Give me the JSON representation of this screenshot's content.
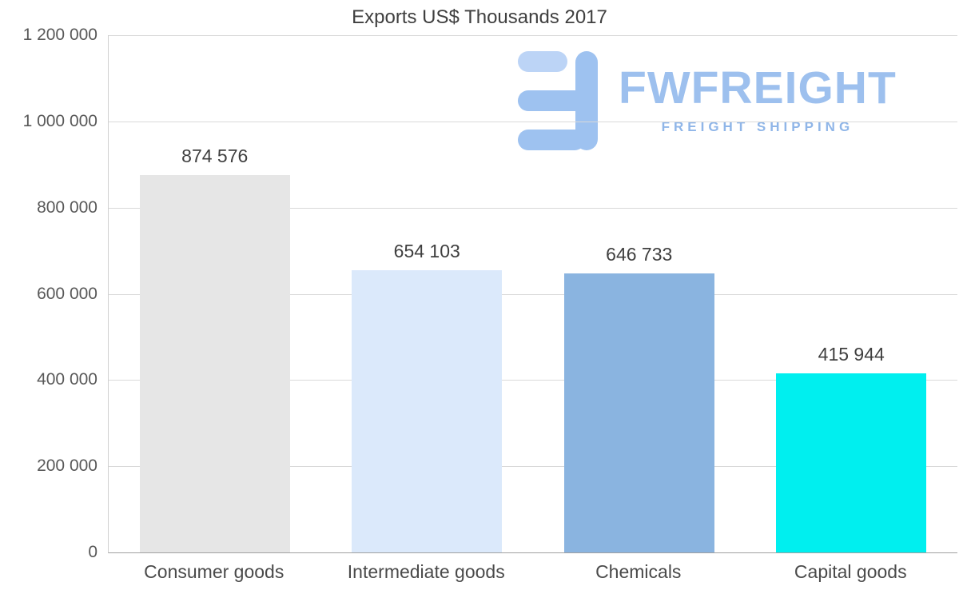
{
  "chart_data": {
    "type": "bar",
    "title": "Exports US$ Thousands 2017",
    "categories": [
      "Consumer goods",
      "Intermediate goods",
      "Chemicals",
      "Capital goods"
    ],
    "values": [
      874576,
      654103,
      646733,
      415944
    ],
    "value_labels": [
      "874 576",
      "654 103",
      "646 733",
      "415 944"
    ],
    "bar_colors": [
      "#e6e6e6",
      "#dbe9fb",
      "#8ab4e0",
      "#00efef"
    ],
    "xlabel": "",
    "ylabel": "",
    "ylim": [
      0,
      1200000
    ],
    "ytick_interval": 200000,
    "ytick_labels": [
      "0",
      "200 000",
      "400 000",
      "600 000",
      "800 000",
      "1 000 000",
      "1 200 000"
    ],
    "grid": true,
    "legend": "none"
  },
  "watermark": {
    "brand": "FWFREIGHT",
    "subtitle": "FREIGHT SHIPPING",
    "color": "#9dc0ee"
  }
}
